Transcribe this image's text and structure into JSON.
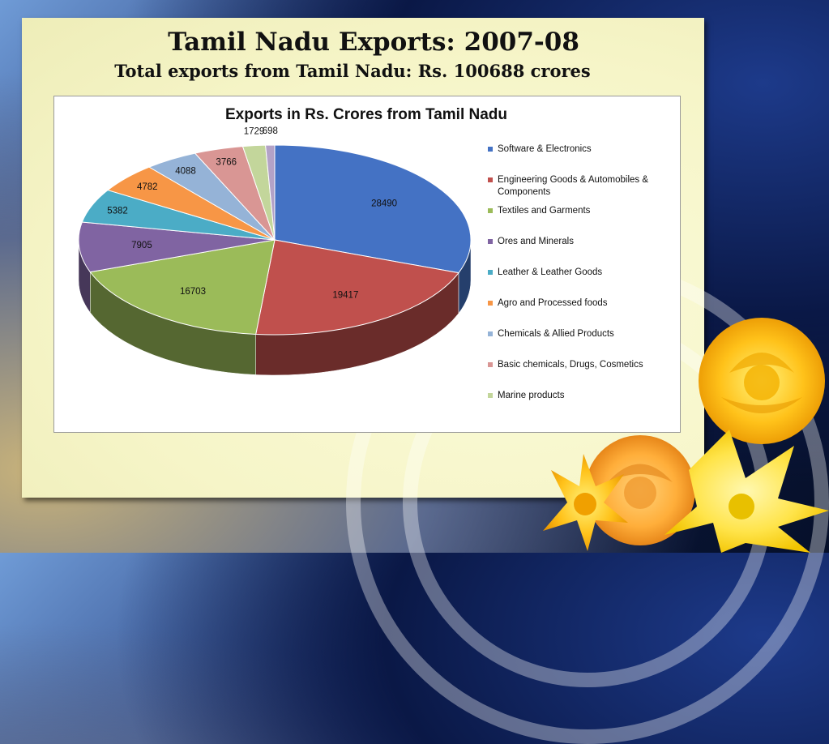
{
  "slide": {
    "title": "Tamil Nadu Exports: 2007-08",
    "subtitle": "Total exports from Tamil Nadu: Rs. 100688 crores"
  },
  "chart_data": {
    "type": "pie",
    "title": "Exports in Rs. Crores from Tamil Nadu",
    "legend_position": "right",
    "categories": [
      "Software & Electronics",
      "Engineering Goods & Automobiles & Components",
      "Textiles and Garments",
      "Ores and Minerals",
      "Leather & Leather Goods",
      "Agro and Processed foods",
      "Chemicals & Allied Products",
      "Basic chemicals, Drugs, Cosmetics",
      "Marine products",
      ""
    ],
    "values": [
      28490,
      19417,
      16703,
      7905,
      5382,
      4782,
      4088,
      3766,
      1729,
      698
    ],
    "colors": [
      "#4472C4",
      "#C0504D",
      "#9BBB59",
      "#8064A2",
      "#4BACC6",
      "#F79646",
      "#95B3D7",
      "#D99694",
      "#C3D69B",
      "#B3A2C7"
    ]
  }
}
